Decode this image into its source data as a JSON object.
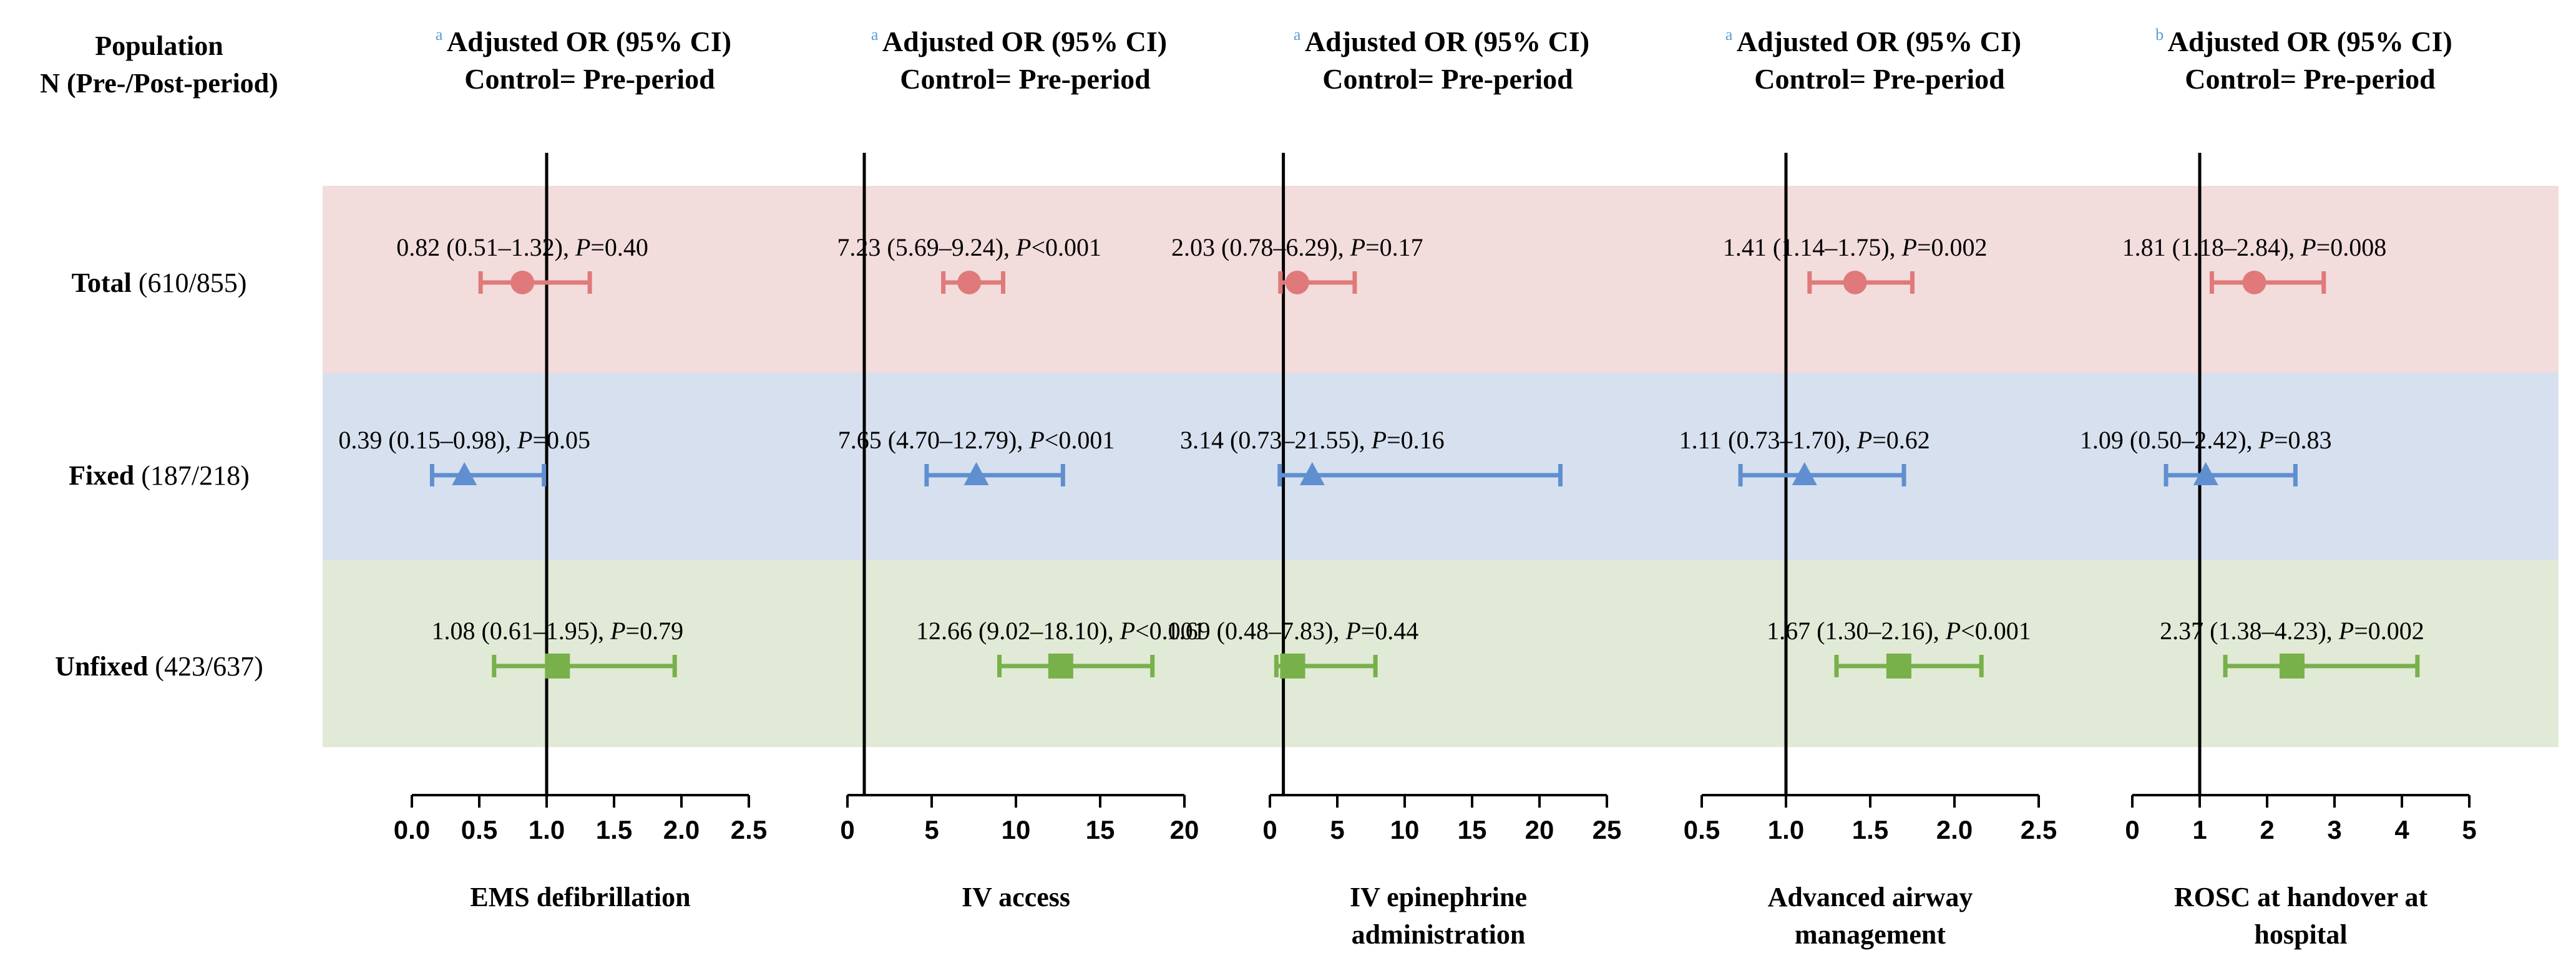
{
  "population_header": {
    "line1": "Population",
    "line2": "N (Pre-/Post-period)"
  },
  "rows": [
    {
      "name": "Total",
      "n": "(610/855)",
      "color": "#e07a7a",
      "band_color": "#f3dcdc",
      "marker": "circle"
    },
    {
      "name": "Fixed",
      "n": "(187/218)",
      "color": "#5f8fd0",
      "band_color": "#d7e0ee",
      "marker": "triangle"
    },
    {
      "name": "Unfixed",
      "n": "(423/637)",
      "color": "#78b04a",
      "band_color": "#e1ead6",
      "marker": "square"
    }
  ],
  "chart_data": [
    {
      "type": "forest",
      "superscript": "a",
      "title_line1": "Adjusted OR (95% CI)",
      "title_line2": "Control= Pre-period",
      "xlabel_lines": [
        "EMS defibrillation"
      ],
      "xlim": [
        0,
        2.5
      ],
      "ref_line": 1,
      "ticks": [
        0,
        0.5,
        1,
        1.5,
        2,
        2.5
      ],
      "tick_labels": [
        "0.0",
        "0.5",
        "1.0",
        "1.5",
        "2.0",
        "2.5"
      ],
      "points": [
        {
          "or": 0.82,
          "lo": 0.51,
          "hi": 1.32,
          "ci_text": "0.82 (0.51–1.32),",
          "p_text": "=0.40"
        },
        {
          "or": 0.39,
          "lo": 0.15,
          "hi": 0.98,
          "ci_text": "0.39 (0.15–0.98),",
          "p_text": "=0.05"
        },
        {
          "or": 1.08,
          "lo": 0.61,
          "hi": 1.95,
          "ci_text": "1.08 (0.61–1.95),",
          "p_text": "=0.79"
        }
      ]
    },
    {
      "type": "forest",
      "superscript": "a",
      "title_line1": "Adjusted OR (95% CI)",
      "title_line2": "Control= Pre-period",
      "xlabel_lines": [
        "IV access"
      ],
      "xlim": [
        0,
        20
      ],
      "ref_line": 1,
      "ticks": [
        0,
        5,
        10,
        15,
        20
      ],
      "tick_labels": [
        "0",
        "5",
        "10",
        "15",
        "20"
      ],
      "points": [
        {
          "or": 7.23,
          "lo": 5.69,
          "hi": 9.24,
          "ci_text": "7.23 (5.69–9.24),",
          "p_text": "<0.001"
        },
        {
          "or": 7.65,
          "lo": 4.7,
          "hi": 12.79,
          "ci_text": "7.65 (4.70–12.79),",
          "p_text": "<0.001"
        },
        {
          "or": 12.66,
          "lo": 9.02,
          "hi": 18.1,
          "ci_text": "12.66 (9.02–18.10),",
          "p_text": "<0.001"
        }
      ]
    },
    {
      "type": "forest",
      "superscript": "a",
      "title_line1": "Adjusted OR (95% CI)",
      "title_line2": "Control= Pre-period",
      "xlabel_lines": [
        "IV epinephrine",
        "administration"
      ],
      "xlim": [
        0,
        25
      ],
      "ref_line": 1,
      "ticks": [
        0,
        5,
        10,
        15,
        20,
        25
      ],
      "tick_labels": [
        "0",
        "5",
        "10",
        "15",
        "20",
        "25"
      ],
      "points": [
        {
          "or": 2.03,
          "lo": 0.78,
          "hi": 6.29,
          "ci_text": "2.03 (0.78–6.29),",
          "p_text": "=0.17"
        },
        {
          "or": 3.14,
          "lo": 0.73,
          "hi": 21.55,
          "ci_text": "3.14 (0.73–21.55),",
          "p_text": "=0.16"
        },
        {
          "or": 1.69,
          "lo": 0.48,
          "hi": 7.83,
          "ci_text": "1.69 (0.48–7.83),",
          "p_text": "=0.44"
        }
      ]
    },
    {
      "type": "forest",
      "superscript": "a",
      "title_line1": "Adjusted OR (95% CI)",
      "title_line2": "Control= Pre-period",
      "xlabel_lines": [
        "Advanced airway",
        "management"
      ],
      "xlim": [
        0.5,
        2.5
      ],
      "ref_line": 1,
      "ticks": [
        0.5,
        1,
        1.5,
        2,
        2.5
      ],
      "tick_labels": [
        "0.5",
        "1.0",
        "1.5",
        "2.0",
        "2.5"
      ],
      "points": [
        {
          "or": 1.41,
          "lo": 1.14,
          "hi": 1.75,
          "ci_text": "1.41 (1.14–1.75),",
          "p_text": "=0.002"
        },
        {
          "or": 1.11,
          "lo": 0.73,
          "hi": 1.7,
          "ci_text": "1.11 (0.73–1.70),",
          "p_text": "=0.62"
        },
        {
          "or": 1.67,
          "lo": 1.3,
          "hi": 2.16,
          "ci_text": "1.67 (1.30–2.16),",
          "p_text": "<0.001"
        }
      ]
    },
    {
      "type": "forest",
      "superscript": "b",
      "title_line1": "Adjusted OR (95% CI)",
      "title_line2": "Control= Pre-period",
      "xlabel_lines": [
        "ROSC at handover at",
        "hospital"
      ],
      "xlim": [
        0,
        5
      ],
      "ref_line": 1,
      "ticks": [
        0,
        1,
        2,
        3,
        4,
        5
      ],
      "tick_labels": [
        "0",
        "1",
        "2",
        "3",
        "4",
        "5"
      ],
      "points": [
        {
          "or": 1.81,
          "lo": 1.18,
          "hi": 2.84,
          "ci_text": "1.81 (1.18–2.84),",
          "p_text": "=0.008"
        },
        {
          "or": 1.09,
          "lo": 0.5,
          "hi": 2.42,
          "ci_text": "1.09 (0.50–2.42),",
          "p_text": "=0.83"
        },
        {
          "or": 2.37,
          "lo": 1.38,
          "hi": 4.23,
          "ci_text": "2.37 (1.38–4.23),",
          "p_text": "=0.002"
        }
      ]
    }
  ],
  "p_symbol": "P",
  "superscript_color": "#5b9bd5"
}
